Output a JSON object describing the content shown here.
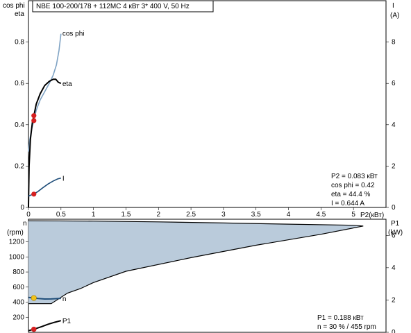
{
  "chart_data": [
    {
      "type": "line",
      "title": "NBE 100-200/178 + 112MC   4 кВт   3* 400 V, 50 Hz",
      "ylabel_left_top": "cos phi",
      "ylabel_left_bottom": "eta",
      "ylabel_right_top": "I",
      "ylabel_right_bottom": "(A)",
      "xlabel": "P2(кВт)",
      "xlim": [
        0,
        5.5
      ],
      "ylim_left": [
        0,
        1.0
      ],
      "ylim_right": [
        0,
        10
      ],
      "x_ticks": [
        0,
        0.5,
        1,
        1.5,
        2,
        2.5,
        3,
        3.5,
        4,
        4.5,
        5
      ],
      "x_tick_labels": [
        "0",
        "0.5",
        "1",
        "1.5",
        "2",
        "2.5",
        "3",
        "3.5",
        "4",
        "4.5",
        "5"
      ],
      "y_left_ticks": [
        0,
        0.2,
        0.4,
        0.6,
        0.8
      ],
      "y_left_tick_labels": [
        "0",
        "0.2",
        "0.4",
        "0.6",
        "0.8"
      ],
      "y_right_ticks": [
        0,
        2,
        4,
        6,
        8
      ],
      "y_right_tick_labels": [
        "0",
        "2",
        "4",
        "6",
        "8"
      ],
      "series": [
        {
          "name": "cos phi",
          "axis": "left",
          "color": "#7fa3c4",
          "x": [
            0.0,
            0.02,
            0.05,
            0.083,
            0.12,
            0.18,
            0.25,
            0.32,
            0.38,
            0.43,
            0.47,
            0.5
          ],
          "y": [
            0.27,
            0.33,
            0.38,
            0.42,
            0.47,
            0.52,
            0.56,
            0.6,
            0.64,
            0.69,
            0.76,
            0.84
          ]
        },
        {
          "name": "eta",
          "axis": "left",
          "color": "#000000",
          "x": [
            0.0,
            0.01,
            0.03,
            0.06,
            0.083,
            0.12,
            0.18,
            0.25,
            0.32,
            0.38,
            0.42,
            0.46,
            0.5
          ],
          "y": [
            0.0,
            0.2,
            0.33,
            0.41,
            0.444,
            0.5,
            0.55,
            0.59,
            0.61,
            0.62,
            0.62,
            0.605,
            0.6
          ]
        },
        {
          "name": "I",
          "axis": "right",
          "color": "#1f4e7a",
          "x": [
            0.0,
            0.04,
            0.083,
            0.15,
            0.22,
            0.3,
            0.38,
            0.45,
            0.5
          ],
          "y": [
            0.55,
            0.6,
            0.644,
            0.78,
            0.95,
            1.13,
            1.28,
            1.38,
            1.42
          ]
        }
      ],
      "operating_point": {
        "x": 0.083,
        "markers": [
          {
            "series": "eta",
            "y": 0.444
          },
          {
            "series": "cos phi",
            "y": 0.42
          },
          {
            "series": "I",
            "y": 0.644
          }
        ],
        "color": "#d62020"
      },
      "annotation": {
        "p2": "P2  = 0.083 кВт",
        "cosphi": "cos phi = 0.42",
        "eta": "eta  = 44.4 %",
        "current": "I    = 0.644 A"
      }
    },
    {
      "type": "area",
      "ylabel_left_top": "n",
      "ylabel_left_bottom": "(rpm)",
      "ylabel_right_top": "P1",
      "ylabel_right_bottom": "(kW)",
      "xlim": [
        0,
        5.5
      ],
      "ylim_left": [
        0,
        1500
      ],
      "ylim_right": [
        0,
        7
      ],
      "y_left_ticks": [
        200,
        400,
        600,
        800,
        1000,
        1200
      ],
      "y_left_tick_labels": [
        "200",
        "400",
        "600",
        "800",
        "1000",
        "1200"
      ],
      "y_right_ticks": [
        0,
        2,
        4,
        6
      ],
      "y_right_tick_labels": [
        "0",
        "2",
        "4",
        "6"
      ],
      "envelope": {
        "fill": "#bacbdb",
        "x_upper": [
          0.0,
          1.0,
          2.0,
          3.0,
          4.0,
          5.0,
          5.15
        ],
        "y_upper": [
          1480,
          1475,
          1465,
          1450,
          1435,
          1420,
          1410
        ],
        "x_lower": [
          5.15,
          4.5,
          3.5,
          2.5,
          1.5,
          1.0,
          0.8,
          0.6,
          0.35,
          0.0
        ],
        "y_lower": [
          1410,
          1300,
          1155,
          990,
          810,
          660,
          580,
          520,
          380,
          380
        ]
      },
      "series": [
        {
          "name": "n",
          "axis": "left",
          "color": "#1f4e7a",
          "x": [
            0.0,
            0.05,
            0.083,
            0.15,
            0.25,
            0.35,
            0.45,
            0.5
          ],
          "y": [
            462,
            458,
            455,
            448,
            442,
            443,
            447,
            450
          ]
        },
        {
          "name": "P1",
          "axis": "right",
          "color": "#000000",
          "x": [
            0.0,
            0.083,
            0.2,
            0.3,
            0.4,
            0.5
          ],
          "y": [
            0.1,
            0.188,
            0.35,
            0.5,
            0.62,
            0.72
          ]
        }
      ],
      "operating_point": {
        "x": 0.083,
        "markers": [
          {
            "series": "n",
            "y": 455,
            "color": "#f2c21a"
          },
          {
            "series": "P1",
            "y": 0.188,
            "color": "#d62020"
          }
        ]
      },
      "annotation": {
        "p1": "P1  = 0.188 кВт",
        "n": "n   = 30 % / 455 rpm"
      }
    }
  ]
}
